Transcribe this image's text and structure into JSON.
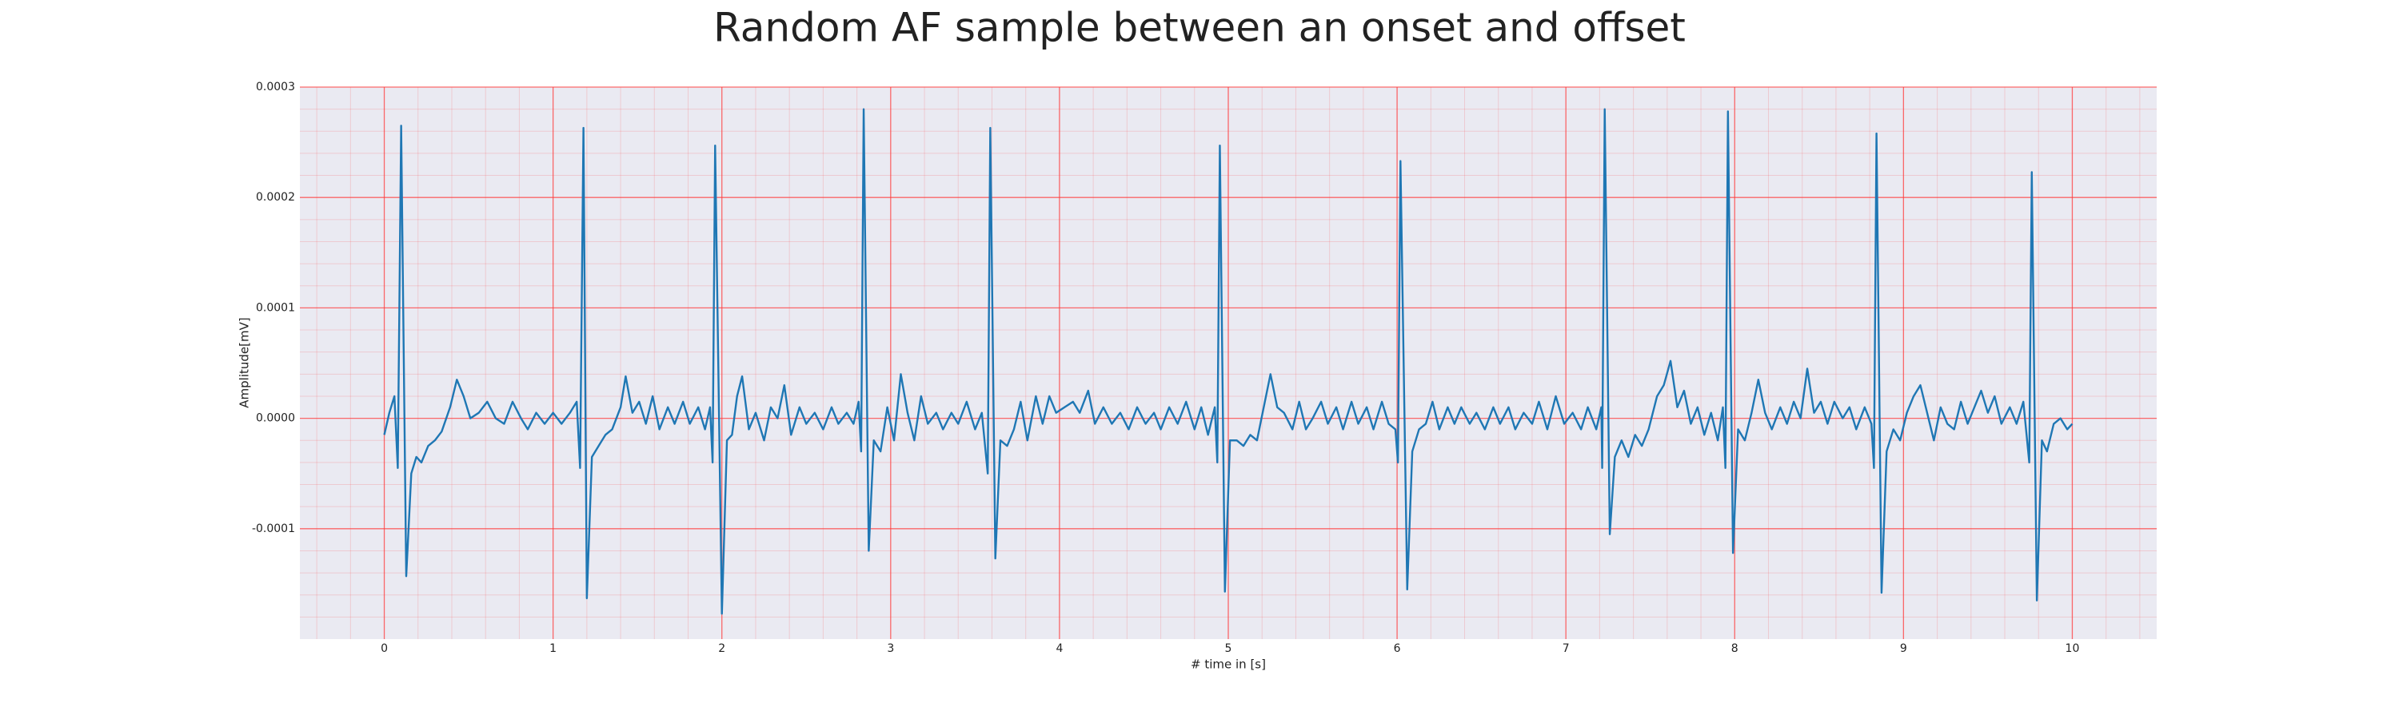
{
  "chart_data": {
    "type": "line",
    "title": "Random AF sample between an onset and offset",
    "xlabel": "# time in [s]",
    "ylabel": "Amplitude[mV]",
    "xlim": [
      -0.5,
      10.5
    ],
    "ylim": [
      -0.0002,
      0.0003
    ],
    "xticks": [
      0,
      1,
      2,
      3,
      4,
      5,
      6,
      7,
      8,
      9,
      10
    ],
    "yticks": [
      {
        "value": -0.0001,
        "label": "-0.0001"
      },
      {
        "value": 0,
        "label": "0.0000"
      },
      {
        "value": 0.0001,
        "label": "0.0001"
      },
      {
        "value": 0.0002,
        "label": "0.0002"
      },
      {
        "value": 0.0003,
        "label": "0.0003"
      }
    ],
    "grid": true,
    "minor_grid": true,
    "grid_color": "#ff3b3b",
    "background": "#eaeaf2",
    "series": [
      {
        "color": "#1f77b4",
        "x": [
          0.0,
          0.03,
          0.06,
          0.08,
          0.1,
          0.13,
          0.16,
          0.19,
          0.22,
          0.26,
          0.3,
          0.34,
          0.39,
          0.43,
          0.47,
          0.51,
          0.56,
          0.61,
          0.66,
          0.71,
          0.76,
          0.81,
          0.85,
          0.9,
          0.95,
          1.0,
          1.05,
          1.1,
          1.14,
          1.16,
          1.18,
          1.2,
          1.23,
          1.27,
          1.31,
          1.35,
          1.4,
          1.43,
          1.47,
          1.51,
          1.55,
          1.59,
          1.63,
          1.68,
          1.72,
          1.77,
          1.81,
          1.86,
          1.9,
          1.93,
          1.945,
          1.96,
          2.0,
          2.03,
          2.06,
          2.09,
          2.12,
          2.16,
          2.2,
          2.25,
          2.29,
          2.33,
          2.37,
          2.41,
          2.46,
          2.5,
          2.55,
          2.6,
          2.65,
          2.69,
          2.74,
          2.78,
          2.81,
          2.825,
          2.84,
          2.87,
          2.9,
          2.94,
          2.98,
          3.02,
          3.06,
          3.1,
          3.14,
          3.18,
          3.22,
          3.27,
          3.31,
          3.36,
          3.4,
          3.45,
          3.5,
          3.54,
          3.575,
          3.59,
          3.62,
          3.65,
          3.69,
          3.73,
          3.77,
          3.81,
          3.86,
          3.9,
          3.94,
          3.98,
          4.03,
          4.08,
          4.12,
          4.17,
          4.21,
          4.26,
          4.31,
          4.36,
          4.41,
          4.46,
          4.51,
          4.56,
          4.6,
          4.65,
          4.7,
          4.75,
          4.8,
          4.84,
          4.88,
          4.92,
          4.935,
          4.95,
          4.98,
          5.01,
          5.05,
          5.09,
          5.13,
          5.17,
          5.21,
          5.25,
          5.29,
          5.33,
          5.38,
          5.42,
          5.46,
          5.5,
          5.55,
          5.59,
          5.64,
          5.68,
          5.73,
          5.77,
          5.82,
          5.86,
          5.91,
          5.95,
          5.99,
          6.005,
          6.02,
          6.06,
          6.09,
          6.13,
          6.17,
          6.21,
          6.25,
          6.3,
          6.34,
          6.38,
          6.43,
          6.47,
          6.52,
          6.57,
          6.61,
          6.66,
          6.7,
          6.75,
          6.8,
          6.84,
          6.89,
          6.94,
          6.99,
          7.04,
          7.09,
          7.13,
          7.18,
          7.21,
          7.215,
          7.23,
          7.26,
          7.29,
          7.33,
          7.37,
          7.41,
          7.45,
          7.49,
          7.54,
          7.58,
          7.62,
          7.66,
          7.7,
          7.74,
          7.78,
          7.82,
          7.86,
          7.9,
          7.93,
          7.945,
          7.96,
          7.99,
          8.02,
          8.06,
          8.1,
          8.14,
          8.18,
          8.22,
          8.27,
          8.31,
          8.35,
          8.39,
          8.43,
          8.47,
          8.51,
          8.55,
          8.59,
          8.64,
          8.68,
          8.72,
          8.77,
          8.81,
          8.825,
          8.84,
          8.87,
          8.9,
          8.94,
          8.98,
          9.02,
          9.06,
          9.1,
          9.14,
          9.18,
          9.22,
          9.26,
          9.3,
          9.34,
          9.38,
          9.42,
          9.46,
          9.5,
          9.54,
          9.58,
          9.63,
          9.67,
          9.71,
          9.745,
          9.76,
          9.79,
          9.82,
          9.85,
          9.89,
          9.93,
          9.97,
          10.0
        ],
        "values": [
          -1.5e-05,
          5e-06,
          2e-05,
          -4.5e-05,
          0.000265,
          -0.000143,
          -5e-05,
          -3.5e-05,
          -4e-05,
          -2.5e-05,
          -2e-05,
          -1.2e-05,
          1e-05,
          3.5e-05,
          2e-05,
          0.0,
          5e-06,
          1.5e-05,
          0.0,
          -5e-06,
          1.5e-05,
          0.0,
          -1e-05,
          5e-06,
          -5e-06,
          5e-06,
          -5e-06,
          5e-06,
          1.5e-05,
          -4.5e-05,
          0.000263,
          -0.000163,
          -3.5e-05,
          -2.5e-05,
          -1.5e-05,
          -1e-05,
          1e-05,
          3.8e-05,
          5e-06,
          1.5e-05,
          -5e-06,
          2e-05,
          -1e-05,
          1e-05,
          -5e-06,
          1.5e-05,
          -5e-06,
          1e-05,
          -1e-05,
          1e-05,
          -4e-05,
          0.000247,
          -0.000177,
          -2e-05,
          -1.5e-05,
          2e-05,
          3.8e-05,
          -1e-05,
          5e-06,
          -2e-05,
          1e-05,
          0.0,
          3e-05,
          -1.5e-05,
          1e-05,
          -5e-06,
          5e-06,
          -1e-05,
          1e-05,
          -5e-06,
          5e-06,
          -5e-06,
          1.5e-05,
          -3e-05,
          0.00028,
          -0.00012,
          -2e-05,
          -3e-05,
          1e-05,
          -2e-05,
          4e-05,
          5e-06,
          -2e-05,
          2e-05,
          -5e-06,
          5e-06,
          -1e-05,
          5e-06,
          -5e-06,
          1.5e-05,
          -1e-05,
          5e-06,
          -5e-05,
          0.000263,
          -0.000127,
          -2e-05,
          -2.5e-05,
          -1e-05,
          1.5e-05,
          -2e-05,
          2e-05,
          -5e-06,
          2e-05,
          5e-06,
          1e-05,
          1.5e-05,
          5e-06,
          2.5e-05,
          -5e-06,
          1e-05,
          -5e-06,
          5e-06,
          -1e-05,
          1e-05,
          -5e-06,
          5e-06,
          -1e-05,
          1e-05,
          -5e-06,
          1.5e-05,
          -1e-05,
          1e-05,
          -1.5e-05,
          1e-05,
          -4e-05,
          0.000247,
          -0.000157,
          -2e-05,
          -2e-05,
          -2.5e-05,
          -1.5e-05,
          -2e-05,
          1e-05,
          4e-05,
          1e-05,
          5e-06,
          -1e-05,
          1.5e-05,
          -1e-05,
          0.0,
          1.5e-05,
          -5e-06,
          1e-05,
          -1e-05,
          1.5e-05,
          -5e-06,
          1e-05,
          -1e-05,
          1.5e-05,
          -5e-06,
          -1e-05,
          -4e-05,
          0.000233,
          -0.000155,
          -3e-05,
          -1e-05,
          -5e-06,
          1.5e-05,
          -1e-05,
          1e-05,
          -5e-06,
          1e-05,
          -5e-06,
          5e-06,
          -1e-05,
          1e-05,
          -5e-06,
          1e-05,
          -1e-05,
          5e-06,
          -5e-06,
          1.5e-05,
          -1e-05,
          2e-05,
          -5e-06,
          5e-06,
          -1e-05,
          1e-05,
          -1e-05,
          1e-05,
          -4.5e-05,
          0.00028,
          -0.000105,
          -3.5e-05,
          -2e-05,
          -3.5e-05,
          -1.5e-05,
          -2.5e-05,
          -1e-05,
          2e-05,
          3e-05,
          5.2e-05,
          1e-05,
          2.5e-05,
          -5e-06,
          1e-05,
          -1.5e-05,
          5e-06,
          -2e-05,
          1e-05,
          -4.5e-05,
          0.000278,
          -0.000122,
          -1e-05,
          -2e-05,
          5e-06,
          3.5e-05,
          5e-06,
          -1e-05,
          1e-05,
          -5e-06,
          1.5e-05,
          0.0,
          4.5e-05,
          5e-06,
          1.5e-05,
          -5e-06,
          1.5e-05,
          0.0,
          1e-05,
          -1e-05,
          1e-05,
          -5e-06,
          -4.5e-05,
          0.000258,
          -0.000158,
          -3e-05,
          -1e-05,
          -2e-05,
          5e-06,
          2e-05,
          3e-05,
          5e-06,
          -2e-05,
          1e-05,
          -5e-06,
          -1e-05,
          1.5e-05,
          -5e-06,
          1e-05,
          2.5e-05,
          5e-06,
          2e-05,
          -5e-06,
          1e-05,
          -5e-06,
          1.5e-05,
          -4e-05,
          0.000223,
          -0.000165,
          -2e-05,
          -3e-05,
          -5e-06,
          0.0,
          -1e-05,
          -5e-06
        ]
      }
    ]
  }
}
